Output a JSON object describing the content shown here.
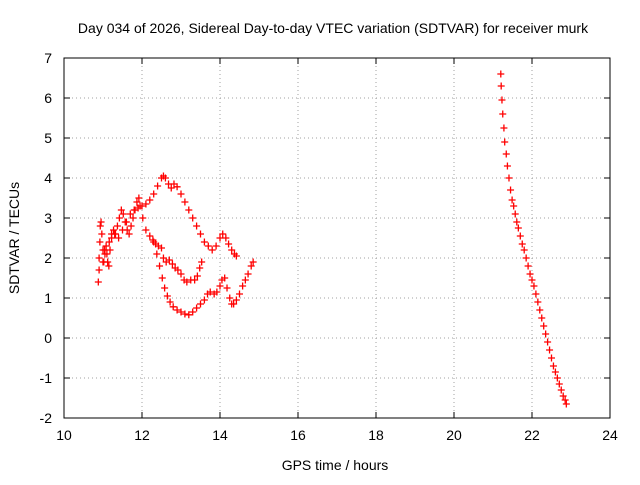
{
  "chart_data": {
    "type": "scatter",
    "title": "Day 034 of 2026, Sidereal Day-to-day VTEC variation (SDTVAR) for receiver murk",
    "xlabel": "GPS time / hours",
    "ylabel": "SDTVAR / TECUs",
    "xlim": [
      10,
      24
    ],
    "ylim": [
      -2,
      7
    ],
    "xticks": [
      10,
      12,
      14,
      16,
      18,
      20,
      22,
      24
    ],
    "yticks": [
      -2,
      -1,
      0,
      1,
      2,
      3,
      4,
      5,
      6,
      7
    ],
    "grid": true,
    "marker": "+",
    "series": [
      {
        "name": "SDTVAR",
        "color": "#ff0000",
        "points": [
          [
            10.88,
            1.4
          ],
          [
            10.9,
            1.7
          ],
          [
            10.9,
            2.0
          ],
          [
            10.92,
            2.4
          ],
          [
            10.93,
            2.8
          ],
          [
            10.95,
            2.9
          ],
          [
            10.97,
            2.6
          ],
          [
            11.0,
            2.2
          ],
          [
            11.02,
            1.9
          ],
          [
            11.05,
            2.1
          ],
          [
            11.08,
            2.3
          ],
          [
            11.12,
            1.9
          ],
          [
            11.15,
            1.8
          ],
          [
            11.18,
            2.2
          ],
          [
            11.22,
            2.6
          ],
          [
            11.27,
            2.7
          ],
          [
            11.32,
            2.6
          ],
          [
            11.37,
            2.8
          ],
          [
            11.42,
            3.0
          ],
          [
            11.47,
            3.2
          ],
          [
            11.52,
            3.1
          ],
          [
            11.57,
            2.9
          ],
          [
            11.62,
            2.7
          ],
          [
            11.67,
            2.6
          ],
          [
            11.72,
            2.8
          ],
          [
            11.77,
            3.0
          ],
          [
            11.82,
            3.2
          ],
          [
            11.87,
            3.4
          ],
          [
            11.92,
            3.5
          ],
          [
            11.0,
            1.9
          ],
          [
            11.04,
            2.2
          ],
          [
            11.1,
            2.1
          ],
          [
            11.16,
            2.4
          ],
          [
            11.22,
            2.5
          ],
          [
            11.3,
            2.6
          ],
          [
            11.4,
            2.5
          ],
          [
            11.5,
            2.7
          ],
          [
            11.6,
            2.9
          ],
          [
            11.7,
            3.1
          ],
          [
            11.8,
            3.2
          ],
          [
            11.9,
            3.25
          ],
          [
            12.0,
            3.3
          ],
          [
            12.1,
            3.35
          ],
          [
            12.2,
            3.45
          ],
          [
            12.3,
            3.6
          ],
          [
            12.4,
            3.8
          ],
          [
            12.5,
            4.0
          ],
          [
            12.55,
            4.05
          ],
          [
            12.6,
            4.0
          ],
          [
            12.68,
            3.85
          ],
          [
            12.75,
            3.75
          ],
          [
            12.82,
            3.85
          ],
          [
            12.9,
            3.78
          ],
          [
            13.0,
            3.6
          ],
          [
            13.1,
            3.4
          ],
          [
            13.2,
            3.2
          ],
          [
            13.3,
            3.0
          ],
          [
            13.4,
            2.8
          ],
          [
            13.5,
            2.6
          ],
          [
            13.6,
            2.4
          ],
          [
            13.7,
            2.3
          ],
          [
            13.8,
            2.2
          ],
          [
            13.9,
            2.3
          ],
          [
            14.0,
            2.5
          ],
          [
            14.07,
            2.6
          ],
          [
            14.15,
            2.5
          ],
          [
            14.22,
            2.35
          ],
          [
            14.3,
            2.2
          ],
          [
            14.37,
            2.1
          ],
          [
            14.42,
            2.05
          ],
          [
            11.95,
            3.3
          ],
          [
            12.02,
            3.0
          ],
          [
            12.1,
            2.7
          ],
          [
            12.2,
            2.55
          ],
          [
            12.28,
            2.45
          ],
          [
            12.35,
            2.35
          ],
          [
            12.42,
            2.3
          ],
          [
            12.5,
            2.25
          ],
          [
            12.55,
            2.0
          ],
          [
            12.62,
            1.9
          ],
          [
            12.7,
            1.95
          ],
          [
            12.78,
            1.85
          ],
          [
            12.85,
            1.75
          ],
          [
            12.92,
            1.7
          ],
          [
            13.0,
            1.6
          ],
          [
            13.08,
            1.45
          ],
          [
            13.15,
            1.4
          ],
          [
            13.25,
            1.45
          ],
          [
            13.35,
            1.45
          ],
          [
            13.42,
            1.55
          ],
          [
            13.48,
            1.75
          ],
          [
            13.53,
            1.9
          ],
          [
            12.3,
            2.4
          ],
          [
            12.38,
            2.1
          ],
          [
            12.45,
            1.8
          ],
          [
            12.52,
            1.5
          ],
          [
            12.58,
            1.25
          ],
          [
            12.65,
            1.05
          ],
          [
            12.72,
            0.9
          ],
          [
            12.8,
            0.78
          ],
          [
            12.9,
            0.7
          ],
          [
            13.0,
            0.65
          ],
          [
            13.1,
            0.6
          ],
          [
            13.2,
            0.58
          ],
          [
            13.3,
            0.65
          ],
          [
            13.4,
            0.75
          ],
          [
            13.5,
            0.85
          ],
          [
            13.6,
            0.95
          ],
          [
            13.68,
            1.1
          ],
          [
            13.75,
            1.15
          ],
          [
            13.85,
            1.1
          ],
          [
            13.92,
            1.15
          ],
          [
            14.0,
            1.3
          ],
          [
            14.05,
            1.45
          ],
          [
            14.12,
            1.5
          ],
          [
            14.18,
            1.25
          ],
          [
            14.25,
            1.0
          ],
          [
            14.3,
            0.85
          ],
          [
            14.35,
            0.85
          ],
          [
            14.42,
            0.95
          ],
          [
            14.5,
            1.1
          ],
          [
            14.58,
            1.3
          ],
          [
            14.65,
            1.45
          ],
          [
            14.72,
            1.6
          ],
          [
            14.8,
            1.8
          ],
          [
            14.85,
            1.9
          ],
          [
            21.2,
            6.6
          ],
          [
            21.21,
            6.3
          ],
          [
            21.23,
            5.95
          ],
          [
            21.25,
            5.6
          ],
          [
            21.28,
            5.25
          ],
          [
            21.3,
            4.9
          ],
          [
            21.34,
            4.6
          ],
          [
            21.37,
            4.3
          ],
          [
            21.41,
            4.0
          ],
          [
            21.45,
            3.7
          ],
          [
            21.49,
            3.45
          ],
          [
            21.53,
            3.3
          ],
          [
            21.57,
            3.1
          ],
          [
            21.61,
            2.9
          ],
          [
            21.65,
            2.75
          ],
          [
            21.7,
            2.55
          ],
          [
            21.75,
            2.35
          ],
          [
            21.8,
            2.2
          ],
          [
            21.85,
            2.0
          ],
          [
            21.9,
            1.8
          ],
          [
            21.95,
            1.6
          ],
          [
            22.0,
            1.45
          ],
          [
            22.05,
            1.3
          ],
          [
            22.1,
            1.1
          ],
          [
            22.15,
            0.9
          ],
          [
            22.2,
            0.7
          ],
          [
            22.25,
            0.5
          ],
          [
            22.3,
            0.3
          ],
          [
            22.35,
            0.1
          ],
          [
            22.4,
            -0.1
          ],
          [
            22.45,
            -0.3
          ],
          [
            22.5,
            -0.5
          ],
          [
            22.55,
            -0.7
          ],
          [
            22.6,
            -0.85
          ],
          [
            22.65,
            -1.0
          ],
          [
            22.7,
            -1.15
          ],
          [
            22.75,
            -1.3
          ],
          [
            22.8,
            -1.45
          ],
          [
            22.85,
            -1.55
          ],
          [
            22.88,
            -1.65
          ]
        ]
      }
    ]
  }
}
